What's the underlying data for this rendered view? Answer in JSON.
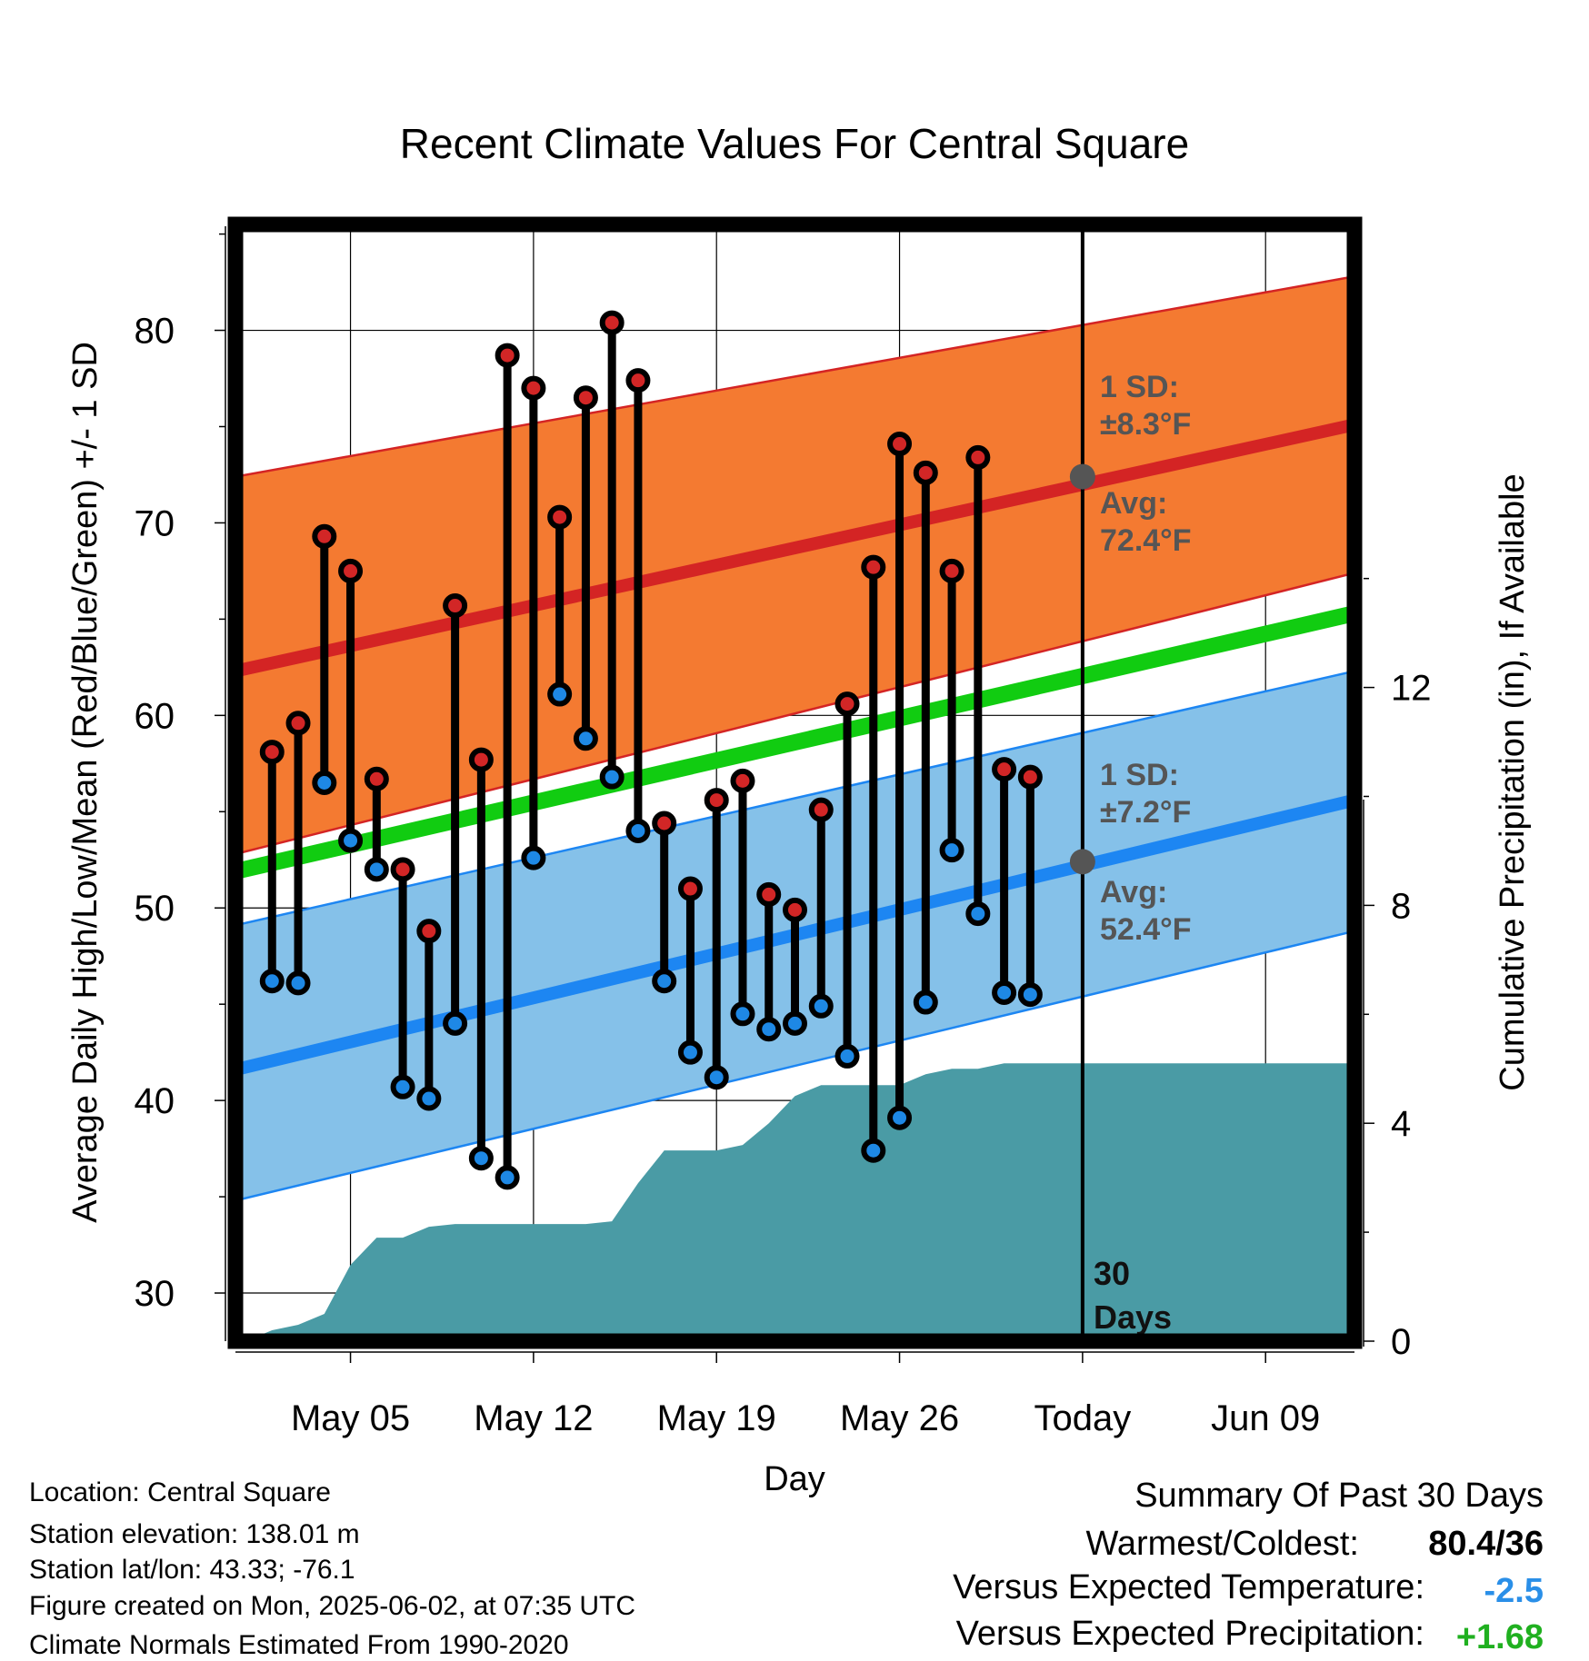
{
  "chart_data": {
    "type": "line",
    "title": "Recent Climate Values For Central Square",
    "xlabel": "Day",
    "ylabel": "Average Daily High/Low/Mean (Red/Blue/Green) +/- 1 SD",
    "y2label": "Cumulative Precipitation (in), If Available",
    "ylim": [
      27.5,
      85.5
    ],
    "y2lim": [
      0,
      20.5
    ],
    "xlim": [
      0.6,
      43.4
    ],
    "y_ticks": [
      "30",
      "40",
      "50",
      "60",
      "70",
      "80"
    ],
    "y2_ticks": [
      "0",
      "4",
      "8",
      "12"
    ],
    "x_ticks": [
      {
        "day": 5,
        "label": "May 05"
      },
      {
        "day": 12,
        "label": "May 12"
      },
      {
        "day": 19,
        "label": "May 19"
      },
      {
        "day": 26,
        "label": "May 26"
      },
      {
        "day": 33,
        "label": "Today"
      },
      {
        "day": 40,
        "label": "Jun 09"
      }
    ],
    "today_day": 33,
    "today_label": [
      "30",
      "Days"
    ],
    "normals": {
      "x_range": [
        0.6,
        43.4
      ],
      "high_mean": [
        62.3,
        75.1
      ],
      "high_upper": [
        72.4,
        82.8
      ],
      "high_lower": [
        52.8,
        67.4
      ],
      "mean": [
        51.9,
        65.3
      ],
      "low_mean": [
        41.6,
        55.6
      ],
      "low_upper": [
        49.1,
        62.3
      ],
      "low_lower": [
        34.8,
        48.8
      ]
    },
    "annotations": {
      "high_sd": [
        "1 SD:",
        "±8.3°F"
      ],
      "high_avg": [
        "Avg:",
        "72.4°F"
      ],
      "low_sd": [
        "1 SD:",
        "±7.2°F"
      ],
      "low_avg": [
        "Avg:",
        "52.4°F"
      ],
      "high_avg_value": 72.4,
      "low_avg_value": 52.4
    },
    "series": [
      {
        "name": "High",
        "x": [
          2,
          3,
          4,
          5,
          6,
          7,
          8,
          9,
          10,
          11,
          12,
          13,
          14,
          15,
          16,
          17,
          18,
          19,
          20,
          21,
          22,
          23,
          24,
          25,
          26,
          27,
          28,
          29,
          30,
          31,
          32
        ],
        "values": [
          58.1,
          59.6,
          69.3,
          67.5,
          56.7,
          52.0,
          48.8,
          65.7,
          57.7,
          78.7,
          77.0,
          70.3,
          76.5,
          80.4,
          77.4,
          54.4,
          51.0,
          55.6,
          56.6,
          50.7,
          49.9,
          55.1,
          60.6,
          67.7,
          74.1,
          72.6,
          67.5,
          73.4,
          57.2,
          56.8,
          null
        ]
      },
      {
        "name": "Low",
        "x": [
          2,
          3,
          4,
          5,
          6,
          7,
          8,
          9,
          10,
          11,
          12,
          13,
          14,
          15,
          16,
          17,
          18,
          19,
          20,
          21,
          22,
          23,
          24,
          25,
          26,
          27,
          28,
          29,
          30,
          31,
          32
        ],
        "values": [
          46.2,
          46.1,
          56.5,
          53.5,
          52.0,
          40.7,
          40.1,
          44.0,
          37.0,
          36.0,
          52.6,
          61.1,
          58.8,
          56.8,
          54.0,
          46.2,
          42.5,
          41.2,
          44.5,
          43.7,
          44.0,
          44.9,
          42.3,
          37.4,
          39.1,
          45.1,
          53.0,
          49.7,
          45.6,
          45.5,
          null
        ]
      },
      {
        "name": "Precipitation",
        "x": [
          0.6,
          1,
          2,
          3,
          4,
          5,
          6,
          7,
          8,
          9,
          10,
          11,
          12,
          13,
          14,
          15,
          16,
          17,
          18,
          19,
          20,
          21,
          22,
          23,
          24,
          25,
          26,
          27,
          28,
          29,
          30,
          31,
          32,
          33,
          43.4
        ],
        "values": [
          0.0,
          0.0,
          0.2,
          0.3,
          0.5,
          1.4,
          1.9,
          1.9,
          2.1,
          2.15,
          2.15,
          2.15,
          2.15,
          2.15,
          2.15,
          2.2,
          2.9,
          3.5,
          3.5,
          3.5,
          3.6,
          4.0,
          4.5,
          4.7,
          4.7,
          4.7,
          4.7,
          4.9,
          5.0,
          5.0,
          5.1,
          5.1,
          5.1,
          5.1,
          5.1
        ]
      }
    ],
    "colors": {
      "high_band": "#f47a31",
      "high_line": "#d42424",
      "low_band": "#85c1e9",
      "low_line": "#1d86f2",
      "mean_line": "#11cc11",
      "precip": "#4a9ba5",
      "high_dot": "#d22626",
      "low_dot": "#1e88e5",
      "avg_marker": "#555555",
      "annotation": "#555555"
    }
  },
  "footer": {
    "location": "Location: Central Square",
    "elevation": "Station elevation: 138.01 m",
    "latlon": "Station lat/lon: 43.33; -76.1",
    "created": "Figure created on Mon, 2025-06-02, at 07:35 UTC",
    "normals": "Climate Normals Estimated From 1990-2020"
  },
  "summary": {
    "heading": "Summary Of Past 30 Days",
    "warmest_label": "Warmest/Coldest:",
    "warmest_value": "80.4/36",
    "temp_label": "Versus Expected Temperature:",
    "temp_value": "-2.5",
    "temp_color": "#2a8fe8",
    "precip_label": "Versus Expected Precipitation:",
    "precip_value": "+1.68",
    "precip_color": "#20b020"
  }
}
